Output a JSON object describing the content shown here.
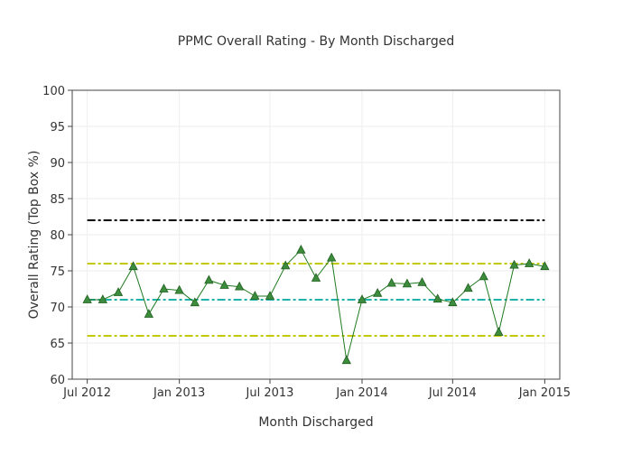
{
  "chart_data": {
    "type": "line",
    "title": "PPMC Overall Rating - By Month Discharged",
    "xlabel": "Month Discharged",
    "ylabel": "Overall Rating (Top Box %)",
    "ylim": [
      60,
      100
    ],
    "xlim": [
      "2012-06-01",
      "2015-01-31"
    ],
    "yticks": [
      60,
      65,
      70,
      75,
      80,
      85,
      90,
      95,
      100
    ],
    "xticks": [
      {
        "date": "2012-07-01",
        "label": "Jul 2012"
      },
      {
        "date": "2013-01-01",
        "label": "Jan 2013"
      },
      {
        "date": "2013-07-01",
        "label": "Jul 2013"
      },
      {
        "date": "2014-01-01",
        "label": "Jan 2014"
      },
      {
        "date": "2014-07-01",
        "label": "Jul 2014"
      },
      {
        "date": "2015-01-01",
        "label": "Jan 2015"
      }
    ],
    "grid": true,
    "series": [
      {
        "color": "#1f7a1f",
        "marker": "triangle-up",
        "marker_color": "#3d8c3d",
        "x": [
          "2012-07-01",
          "2012-08-01",
          "2012-09-01",
          "2012-10-01",
          "2012-11-01",
          "2012-12-01",
          "2013-01-01",
          "2013-02-01",
          "2013-03-01",
          "2013-04-01",
          "2013-05-01",
          "2013-06-01",
          "2013-07-01",
          "2013-08-01",
          "2013-09-01",
          "2013-10-01",
          "2013-11-01",
          "2013-12-01",
          "2014-01-01",
          "2014-02-01",
          "2014-03-01",
          "2014-04-01",
          "2014-05-01",
          "2014-06-01",
          "2014-07-01",
          "2014-08-01",
          "2014-09-01",
          "2014-10-01",
          "2014-11-01",
          "2014-12-01",
          "2015-01-01"
        ],
        "values": [
          71.0,
          71.0,
          72.0,
          75.6,
          69.0,
          72.5,
          72.3,
          70.6,
          73.7,
          73.0,
          72.8,
          71.5,
          71.5,
          75.7,
          77.9,
          74.0,
          76.8,
          62.6,
          71.0,
          71.9,
          73.3,
          73.2,
          73.4,
          71.1,
          70.6,
          72.6,
          74.2,
          66.5,
          75.8,
          76.0,
          75.6
        ]
      }
    ],
    "reference_lines": [
      {
        "y": 82,
        "color": "#000000",
        "style": "dash-dot"
      },
      {
        "y": 76,
        "color": "#c3c900",
        "style": "dash-dot"
      },
      {
        "y": 71,
        "color": "#20b2aa",
        "style": "dash-dot"
      },
      {
        "y": 66,
        "color": "#c3c900",
        "style": "dash-dot"
      }
    ]
  }
}
